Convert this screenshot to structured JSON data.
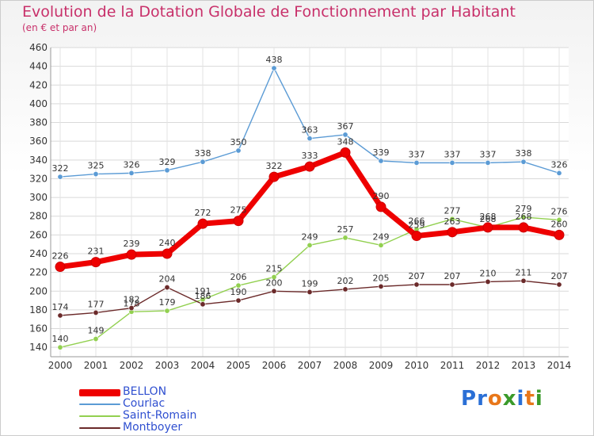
{
  "title": "Evolution de la Dotation Globale de Fonctionnement par Habitant",
  "subtitle": "(en € et par an)",
  "logo": {
    "text": "Proxiti",
    "colors": [
      "#2a6fd6",
      "#2a6fd6",
      "#e8771a",
      "#3a9a2a",
      "#2a6fd6",
      "#e8771a",
      "#3a9a2a"
    ]
  },
  "chart_data": {
    "type": "line",
    "x": [
      "2000",
      "2001",
      "2002",
      "2003",
      "2004",
      "2005",
      "2006",
      "2007",
      "2008",
      "2009",
      "2010",
      "2011",
      "2012",
      "2013",
      "2014"
    ],
    "ylim": [
      130,
      460
    ],
    "yticks": [
      140,
      160,
      180,
      200,
      220,
      240,
      260,
      280,
      300,
      320,
      340,
      360,
      380,
      400,
      420,
      440,
      460
    ],
    "grid": true,
    "legend": "bottom-left",
    "series": [
      {
        "name": "Courlac",
        "color": "#5b9bd5",
        "values": [
          322,
          325,
          326,
          329,
          338,
          350,
          438,
          363,
          367,
          339,
          337,
          337,
          337,
          338,
          326
        ]
      },
      {
        "name": "Saint-Romain",
        "color": "#92d050",
        "values": [
          140,
          149,
          178,
          179,
          191,
          206,
          215,
          249,
          257,
          249,
          266,
          277,
          268,
          279,
          276
        ]
      },
      {
        "name": "Montboyer",
        "color": "#6b2a2a",
        "values": [
          174,
          177,
          182,
          204,
          186,
          190,
          200,
          199,
          202,
          205,
          207,
          207,
          210,
          211,
          207
        ]
      },
      {
        "name": "BELLON",
        "color": "#ee0000",
        "values": [
          226,
          231,
          239,
          240,
          272,
          275,
          322,
          333,
          348,
          290,
          259,
          263,
          268,
          268,
          260
        ]
      }
    ],
    "legend_order": [
      "BELLON",
      "Courlac",
      "Saint-Romain",
      "Montboyer"
    ]
  }
}
